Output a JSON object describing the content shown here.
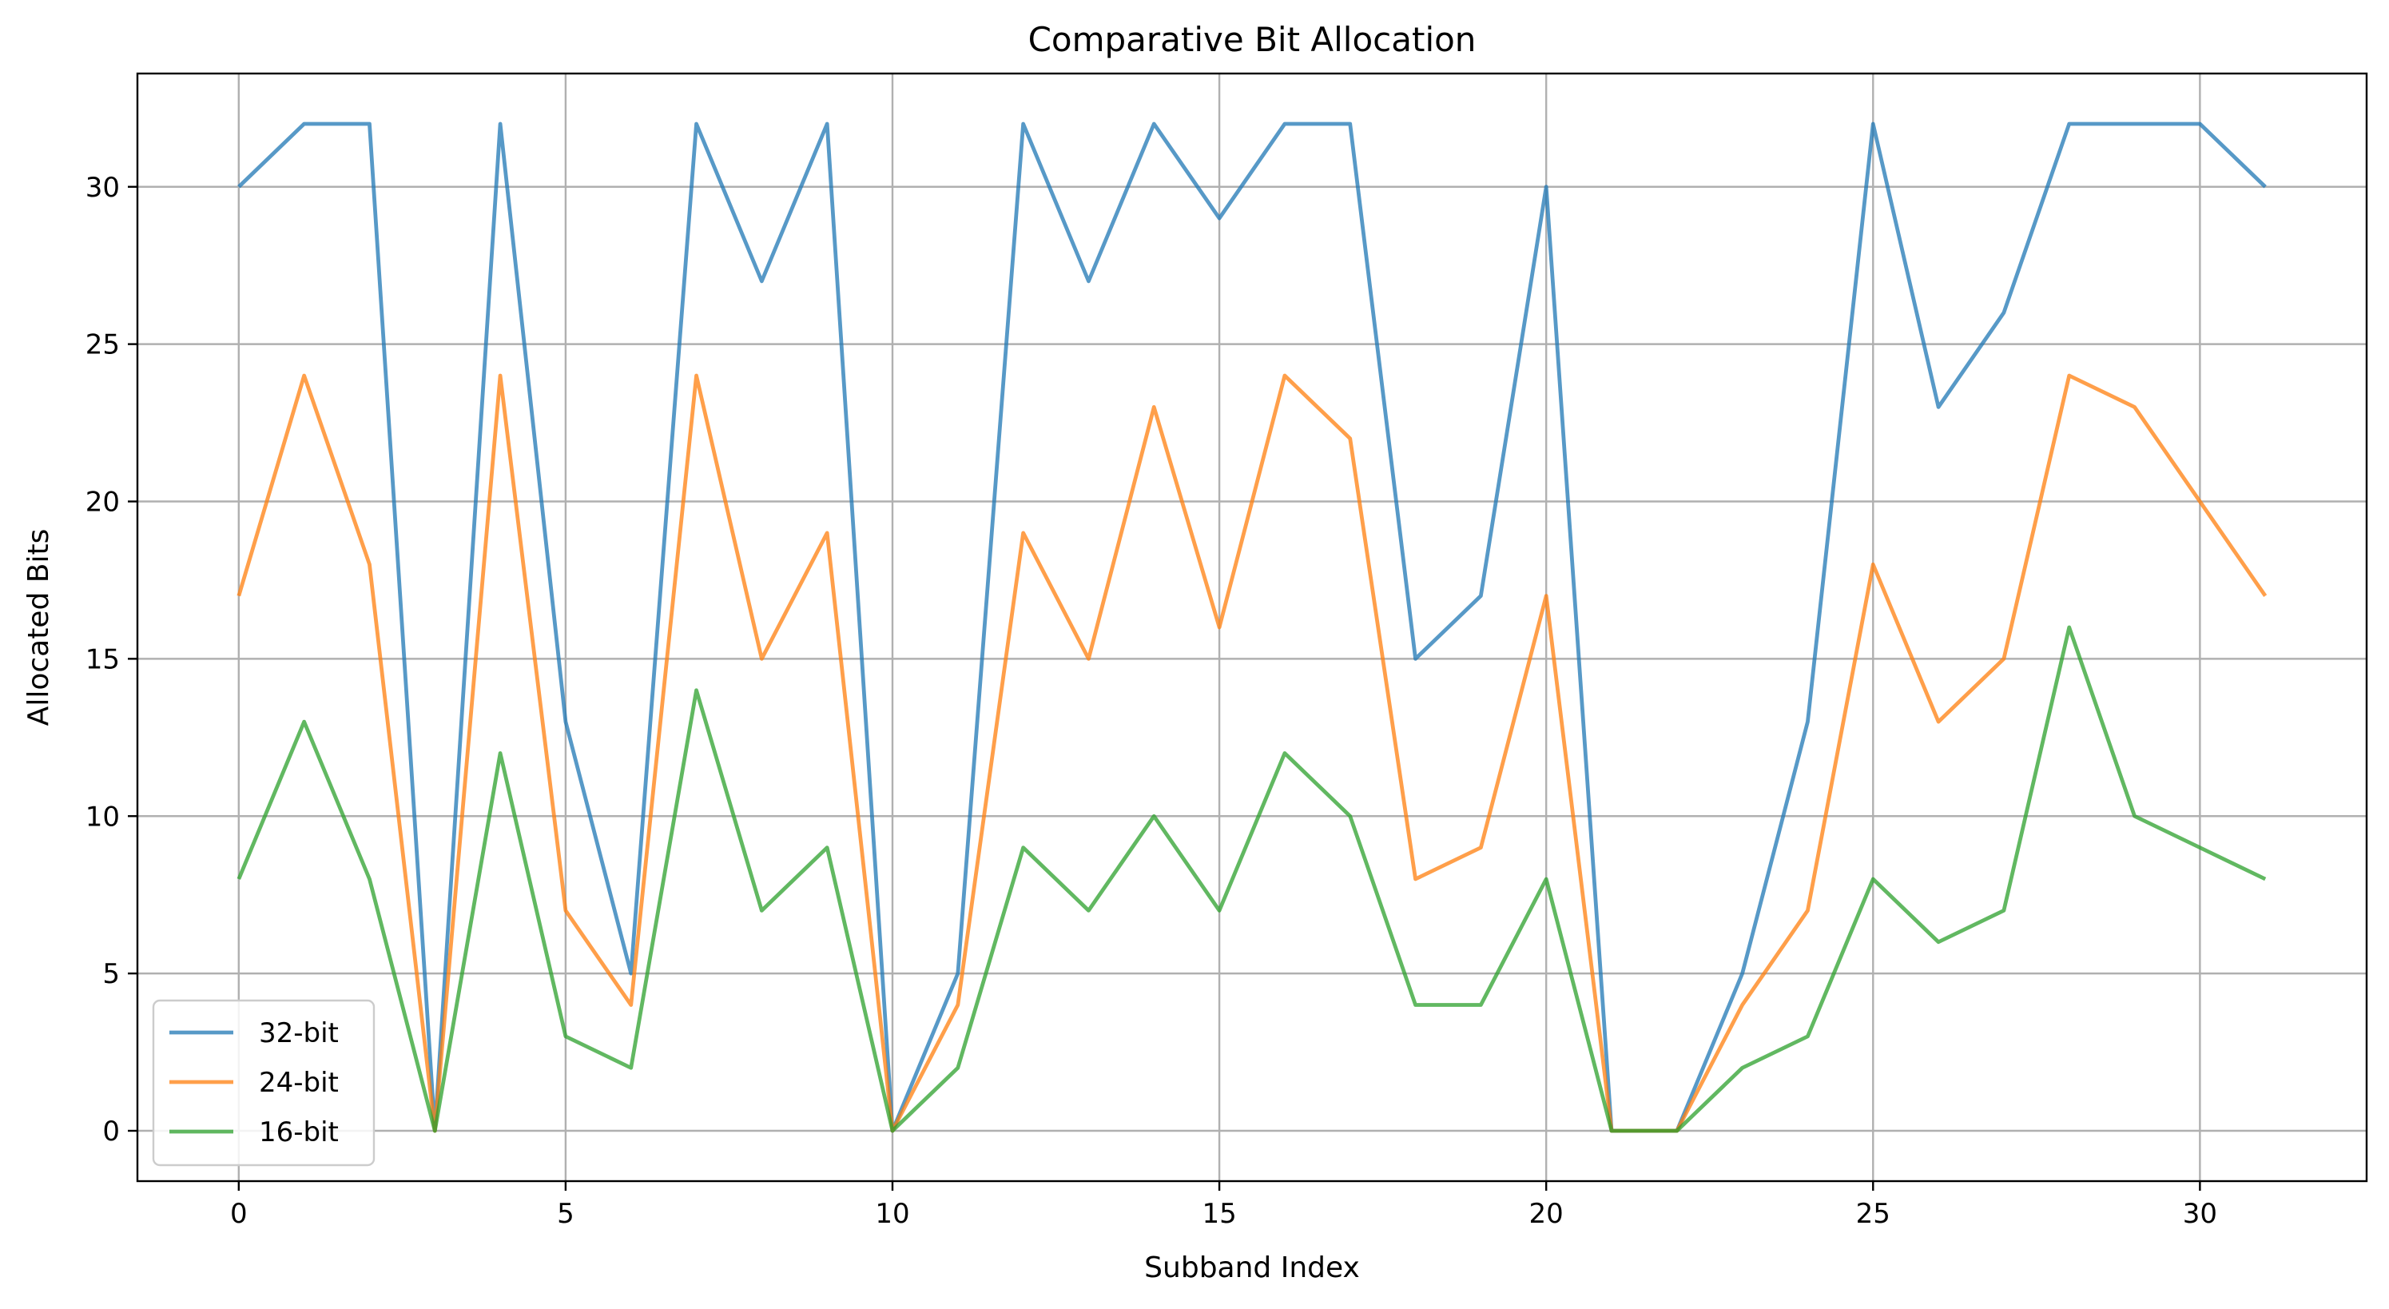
{
  "chart_data": {
    "type": "line",
    "title": "Comparative Bit Allocation",
    "xlabel": "Subband Index",
    "ylabel": "Allocated Bits",
    "xlim": [
      -1.55,
      32.55
    ],
    "ylim": [
      -1.6,
      33.6
    ],
    "xticks": [
      0,
      5,
      10,
      15,
      20,
      25,
      30
    ],
    "yticks": [
      0,
      5,
      10,
      15,
      20,
      25,
      30
    ],
    "grid": true,
    "legend_position": "lower-left",
    "x": [
      0,
      1,
      2,
      3,
      4,
      5,
      6,
      7,
      8,
      9,
      10,
      11,
      12,
      13,
      14,
      15,
      16,
      17,
      18,
      19,
      20,
      21,
      22,
      23,
      24,
      25,
      26,
      27,
      28,
      29,
      30,
      31
    ],
    "series": [
      {
        "name": "32-bit",
        "color": "#1f77b4",
        "values": [
          30,
          32,
          32,
          0,
          32,
          13,
          5,
          32,
          27,
          32,
          0,
          5,
          32,
          27,
          32,
          29,
          32,
          32,
          15,
          17,
          30,
          0,
          0,
          5,
          13,
          32,
          23,
          26,
          32,
          32,
          32,
          30
        ]
      },
      {
        "name": "24-bit",
        "color": "#ff7f0e",
        "values": [
          17,
          24,
          18,
          0,
          24,
          7,
          4,
          24,
          15,
          19,
          0,
          4,
          19,
          15,
          23,
          16,
          24,
          22,
          8,
          9,
          17,
          0,
          0,
          4,
          7,
          18,
          13,
          15,
          24,
          23,
          20,
          17
        ]
      },
      {
        "name": "16-bit",
        "color": "#2ca02c",
        "values": [
          8,
          13,
          8,
          0,
          12,
          3,
          2,
          14,
          7,
          9,
          0,
          2,
          9,
          7,
          10,
          7,
          12,
          10,
          4,
          4,
          8,
          0,
          0,
          2,
          3,
          8,
          6,
          7,
          16,
          10,
          9,
          8
        ]
      }
    ]
  }
}
